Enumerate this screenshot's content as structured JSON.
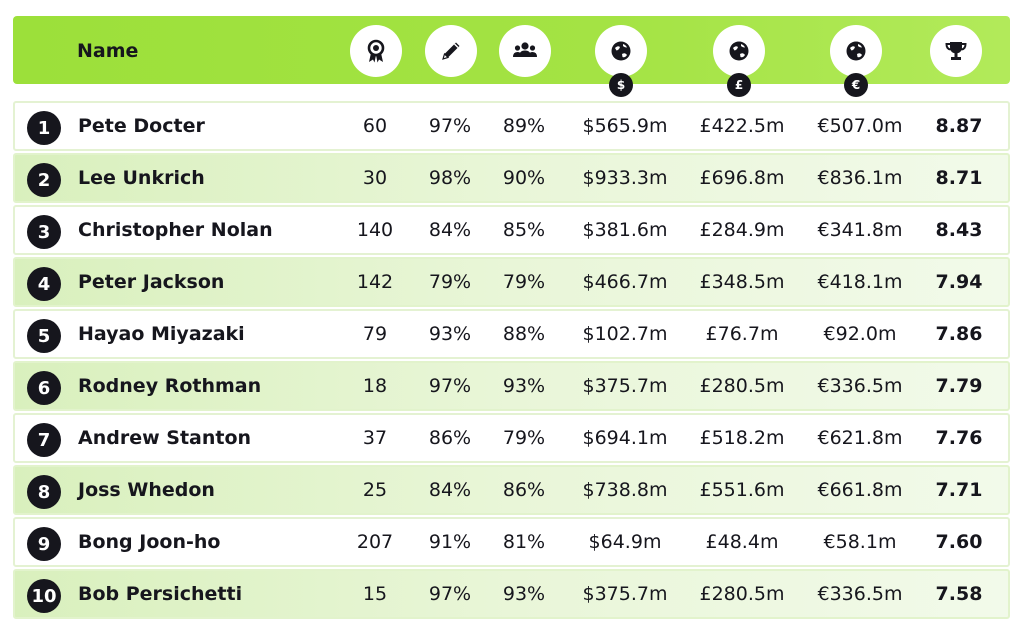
{
  "header": {
    "name_label": "Name",
    "columns": [
      {
        "icon": "award-rosette-icon"
      },
      {
        "icon": "pencil-icon"
      },
      {
        "icon": "audience-group-icon"
      },
      {
        "icon": "globe-icon",
        "badge": "$"
      },
      {
        "icon": "globe-icon",
        "badge": "£"
      },
      {
        "icon": "globe-icon",
        "badge": "€"
      },
      {
        "icon": "trophy-icon"
      }
    ]
  },
  "rows": [
    {
      "rank": "1",
      "name": "Pete Docter",
      "awards": "60",
      "critics": "97%",
      "audience": "89%",
      "usd": "$565.9m",
      "gbp": "£422.5m",
      "eur": "€507.0m",
      "score": "8.87"
    },
    {
      "rank": "2",
      "name": "Lee Unkrich",
      "awards": "30",
      "critics": "98%",
      "audience": "90%",
      "usd": "$933.3m",
      "gbp": "£696.8m",
      "eur": "€836.1m",
      "score": "8.71"
    },
    {
      "rank": "3",
      "name": "Christopher Nolan",
      "awards": "140",
      "critics": "84%",
      "audience": "85%",
      "usd": "$381.6m",
      "gbp": "£284.9m",
      "eur": "€341.8m",
      "score": "8.43"
    },
    {
      "rank": "4",
      "name": "Peter Jackson",
      "awards": "142",
      "critics": "79%",
      "audience": "79%",
      "usd": "$466.7m",
      "gbp": "£348.5m",
      "eur": "€418.1m",
      "score": "7.94"
    },
    {
      "rank": "5",
      "name": "Hayao Miyazaki",
      "awards": "79",
      "critics": "93%",
      "audience": "88%",
      "usd": "$102.7m",
      "gbp": "£76.7m",
      "eur": "€92.0m",
      "score": "7.86"
    },
    {
      "rank": "6",
      "name": "Rodney Rothman",
      "awards": "18",
      "critics": "97%",
      "audience": "93%",
      "usd": "$375.7m",
      "gbp": "£280.5m",
      "eur": "€336.5m",
      "score": "7.79"
    },
    {
      "rank": "7",
      "name": "Andrew Stanton",
      "awards": "37",
      "critics": "86%",
      "audience": "79%",
      "usd": "$694.1m",
      "gbp": "£518.2m",
      "eur": "€621.8m",
      "score": "7.76"
    },
    {
      "rank": "8",
      "name": "Joss Whedon",
      "awards": "25",
      "critics": "84%",
      "audience": "86%",
      "usd": "$738.8m",
      "gbp": "£551.6m",
      "eur": "€661.8m",
      "score": "7.71"
    },
    {
      "rank": "9",
      "name": "Bong Joon-ho",
      "awards": "207",
      "critics": "91%",
      "audience": "81%",
      "usd": "$64.9m",
      "gbp": "£48.4m",
      "eur": "€58.1m",
      "score": "7.60"
    },
    {
      "rank": "10",
      "name": "Bob Persichetti",
      "awards": "15",
      "critics": "97%",
      "audience": "93%",
      "usd": "$375.7m",
      "gbp": "£280.5m",
      "eur": "€336.5m",
      "score": "7.58"
    }
  ],
  "colors": {
    "header_green": "#a4e344",
    "row_alt_green": "#e9f6d8",
    "badge_dark": "#16161d"
  }
}
